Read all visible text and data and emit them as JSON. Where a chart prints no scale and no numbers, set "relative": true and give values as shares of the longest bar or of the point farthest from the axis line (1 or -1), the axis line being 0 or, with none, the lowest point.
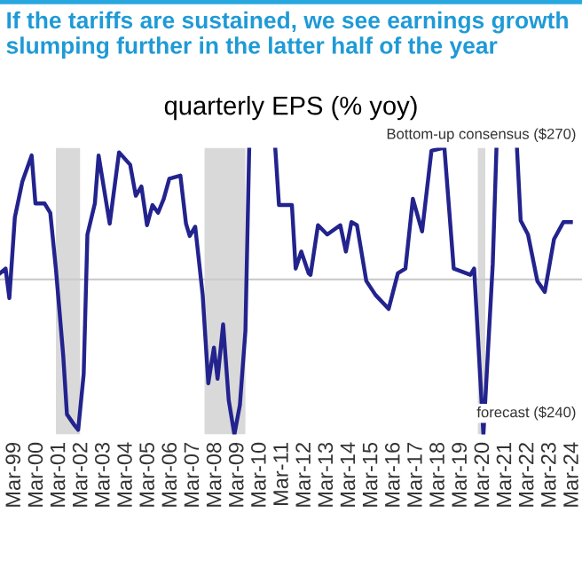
{
  "chart_data": {
    "type": "line",
    "relative": true,
    "subtitle": "If the tariffs are sustained, we see earnings growth slumping further in the latter half of the year",
    "title": "quarterly EPS (% yoy)",
    "annotations": [
      "Bottom-up consensus ($270)",
      "forecast ($240)"
    ],
    "series": [
      {
        "color": "#23238e",
        "x": [
          "1998-07",
          "1998-10",
          "1998-12",
          "1999-03",
          "1999-07",
          "1999-12",
          "2000-02",
          "2000-07",
          "2000-10",
          "2001-01",
          "2001-05",
          "2001-07",
          "2001-11",
          "2002-01",
          "2002-04",
          "2002-06",
          "2002-10",
          "2002-12",
          "2003-06",
          "2003-11",
          "2004-05",
          "2004-08",
          "2004-11",
          "2005-02",
          "2005-05",
          "2005-08",
          "2005-11",
          "2006-02",
          "2006-08",
          "2006-11",
          "2007-01",
          "2007-04",
          "2007-08",
          "2007-11",
          "2008-02",
          "2008-04",
          "2008-07",
          "2008-10",
          "2009-01",
          "2009-04",
          "2009-07",
          "2009-09",
          "2010-04",
          "2010-11",
          "2011-01",
          "2011-04",
          "2011-08",
          "2011-10",
          "2012-01",
          "2012-05",
          "2012-06",
          "2012-10",
          "2013-03",
          "2013-10",
          "2014-01",
          "2014-04",
          "2014-07",
          "2014-12",
          "2015-05",
          "2015-12",
          "2016-05",
          "2016-09",
          "2017-01",
          "2017-06",
          "2017-11",
          "2018-06",
          "2018-11",
          "2019-08",
          "2019-10",
          "2020-03",
          "2020-08",
          "2020-10",
          "2021-03",
          "2021-09",
          "2021-11",
          "2022-03",
          "2022-08",
          "2022-12",
          "2023-05",
          "2023-10",
          "2024-02"
        ],
        "values": [
          0.04,
          0.07,
          -0.12,
          0.4,
          0.63,
          0.8,
          0.49,
          0.49,
          0.43,
          0.07,
          -0.49,
          -0.87,
          -0.94,
          -0.97,
          -0.61,
          0.29,
          0.49,
          0.8,
          0.36,
          0.82,
          0.74,
          0.54,
          0.6,
          0.35,
          0.48,
          0.43,
          0.52,
          0.65,
          0.67,
          0.36,
          0.28,
          0.34,
          -0.1,
          -0.67,
          -0.44,
          -0.64,
          -0.29,
          -0.78,
          -1.0,
          -0.81,
          -0.33,
          0.85,
          null,
          0.85,
          0.48,
          0.48,
          0.48,
          0.07,
          0.18,
          0.04,
          0.03,
          0.35,
          0.29,
          0.35,
          0.18,
          0.37,
          0.35,
          -0.01,
          -0.1,
          -0.19,
          0.04,
          0.07,
          0.52,
          0.31,
          0.83,
          0.85,
          0.07,
          0.03,
          0.07,
          -1.0,
          0.1,
          0.85,
          null,
          0.85,
          0.38,
          0.29,
          -0.01,
          -0.08,
          0.26,
          0.37,
          0.37
        ]
      }
    ],
    "xlim": [
      "1998-07",
      "2024-08"
    ],
    "xticks": [
      {
        "value": "1999-03",
        "label": "Mar-99"
      },
      {
        "value": "2000-03",
        "label": "Mar-00"
      },
      {
        "value": "2001-03",
        "label": "Mar-01"
      },
      {
        "value": "2002-03",
        "label": "Mar-02"
      },
      {
        "value": "2003-03",
        "label": "Mar-03"
      },
      {
        "value": "2004-03",
        "label": "Mar-04"
      },
      {
        "value": "2005-03",
        "label": "Mar-05"
      },
      {
        "value": "2006-03",
        "label": "Mar-06"
      },
      {
        "value": "2007-03",
        "label": "Mar-07"
      },
      {
        "value": "2008-03",
        "label": "Mar-08"
      },
      {
        "value": "2009-03",
        "label": "Mar-09"
      },
      {
        "value": "2010-03",
        "label": "Mar-10"
      },
      {
        "value": "2011-03",
        "label": "Mar-11"
      },
      {
        "value": "2012-03",
        "label": "Mar-12"
      },
      {
        "value": "2013-03",
        "label": "Mar-13"
      },
      {
        "value": "2014-03",
        "label": "Mar-14"
      },
      {
        "value": "2015-03",
        "label": "Mar-15"
      },
      {
        "value": "2016-03",
        "label": "Mar-16"
      },
      {
        "value": "2017-03",
        "label": "Mar-17"
      },
      {
        "value": "2018-03",
        "label": "Mar-18"
      },
      {
        "value": "2019-03",
        "label": "Mar-19"
      },
      {
        "value": "2020-03",
        "label": "Mar-20"
      },
      {
        "value": "2021-03",
        "label": "Mar-21"
      },
      {
        "value": "2022-03",
        "label": "Mar-22"
      },
      {
        "value": "2023-03",
        "label": "Mar-23"
      },
      {
        "value": "2024-03",
        "label": "Mar-24"
      }
    ],
    "bands": [
      {
        "axis": "x",
        "from": "2001-01",
        "to": "2002-02",
        "color": "#d9d9d9"
      },
      {
        "axis": "x",
        "from": "2007-09",
        "to": "2009-07",
        "color": "#d9d9d9"
      },
      {
        "axis": "x",
        "from": "2019-12",
        "to": "2020-04",
        "color": "#d9d9d9"
      }
    ],
    "tick_labels": "x"
  }
}
